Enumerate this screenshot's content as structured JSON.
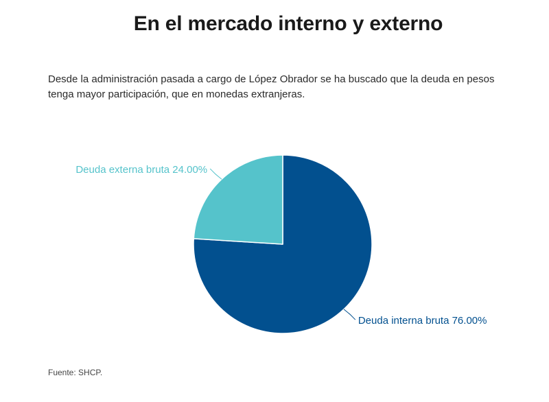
{
  "header": {
    "title": "En el mercado interno y externo",
    "subtitle": "Desde la administración pasada a cargo de López Obrador se ha buscado que la deuda en pesos tenga mayor participación, que en monedas extranjeras."
  },
  "footer": {
    "source": "Fuente: SHCP."
  },
  "chart_data": {
    "type": "pie",
    "title": "",
    "slices": [
      {
        "label": "Deuda interna bruta",
        "value": 76.0,
        "display": "Deuda interna bruta 76.00%",
        "color": "#02508f"
      },
      {
        "label": "Deuda externa bruta",
        "value": 24.0,
        "display": "Deuda externa bruta 24.00%",
        "color": "#55c3cb"
      }
    ],
    "start_angle": "12 o'clock, clockwise",
    "legend": "none (direct labels)"
  }
}
